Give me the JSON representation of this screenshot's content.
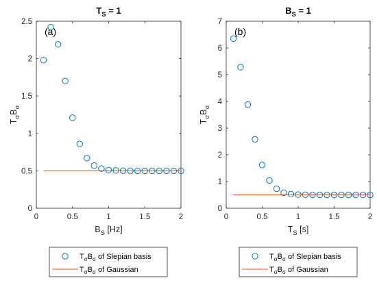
{
  "chart_data": [
    {
      "type": "scatter",
      "title": "T_S = 1",
      "title_main": "T",
      "title_sub": "S",
      "title_rest": " = 1",
      "panel_label": "(a)",
      "xlabel_main": "B",
      "xlabel_sub": "S",
      "xlabel_rest": " [Hz]",
      "ylabel_main": "T",
      "ylabel_sub1": "σ",
      "ylabel_mid": "B",
      "ylabel_sub2": "σ",
      "xlim": [
        0,
        2
      ],
      "ylim": [
        0,
        2.5
      ],
      "xticks": [
        "0",
        "0.5",
        "1",
        "1.5",
        "2"
      ],
      "yticks": [
        "0",
        "0.5",
        "1",
        "1.5",
        "2",
        "2.5"
      ],
      "grid": false,
      "series": [
        {
          "name": "T_σB_σ of Slepian basis",
          "marker": "circle",
          "color": "#0072BD",
          "x": [
            0.1,
            0.2,
            0.3,
            0.4,
            0.5,
            0.6,
            0.7,
            0.8,
            0.9,
            1.0,
            1.1,
            1.2,
            1.3,
            1.4,
            1.5,
            1.6,
            1.7,
            1.8,
            1.9,
            2.0
          ],
          "y": [
            1.98,
            2.42,
            2.19,
            1.7,
            1.21,
            0.86,
            0.67,
            0.57,
            0.53,
            0.51,
            0.505,
            0.502,
            0.501,
            0.5,
            0.5,
            0.5,
            0.5,
            0.5,
            0.5,
            0.5
          ]
        },
        {
          "name": "T_σB_σ of Gaussian",
          "marker": "line",
          "color": "#D95319",
          "x": [
            0.1,
            2.0
          ],
          "y": [
            0.5,
            0.5
          ]
        }
      ],
      "legend": [
        {
          "marker": "circle",
          "main": "T",
          "sub1": "σ",
          "mid": "B",
          "sub2": "σ",
          "rest": " of Slepian basis"
        },
        {
          "marker": "line",
          "main": "T",
          "sub1": "σ",
          "mid": "B",
          "sub2": "σ",
          "rest": " of Gaussian"
        }
      ],
      "legend_position": "bottom"
    },
    {
      "type": "scatter",
      "title": "B_S = 1",
      "title_main": "B",
      "title_sub": "S",
      "title_rest": " = 1",
      "panel_label": "(b)",
      "xlabel_main": "T",
      "xlabel_sub": "S",
      "xlabel_rest": " [s]",
      "ylabel_main": "T",
      "ylabel_sub1": "σ",
      "ylabel_mid": "B",
      "ylabel_sub2": "σ",
      "xlim": [
        0,
        2
      ],
      "ylim": [
        0,
        7
      ],
      "xticks": [
        "0",
        "0.5",
        "1",
        "1.5",
        "2"
      ],
      "yticks": [
        "0",
        "1",
        "2",
        "3",
        "4",
        "5",
        "6",
        "7"
      ],
      "grid": false,
      "series": [
        {
          "name": "T_σB_σ of Slepian basis",
          "marker": "circle",
          "color": "#0072BD",
          "x": [
            0.1,
            0.2,
            0.3,
            0.4,
            0.5,
            0.6,
            0.7,
            0.8,
            0.9,
            1.0,
            1.1,
            1.2,
            1.3,
            1.4,
            1.5,
            1.6,
            1.7,
            1.8,
            1.9,
            2.0
          ],
          "y": [
            6.35,
            5.28,
            3.88,
            2.58,
            1.62,
            1.04,
            0.73,
            0.58,
            0.53,
            0.51,
            0.505,
            0.502,
            0.501,
            0.5,
            0.5,
            0.5,
            0.5,
            0.5,
            0.5,
            0.5
          ]
        },
        {
          "name": "T_σB_σ of Gaussian",
          "marker": "line",
          "color": "#D95319",
          "x": [
            0.1,
            2.0
          ],
          "y": [
            0.5,
            0.5
          ]
        }
      ],
      "legend": [
        {
          "marker": "circle",
          "main": "T",
          "sub1": "σ",
          "mid": "B",
          "sub2": "σ",
          "rest": " of Slepian basis"
        },
        {
          "marker": "line",
          "main": "T",
          "sub1": "σ",
          "mid": "B",
          "sub2": "σ",
          "rest": " of Gaussian"
        }
      ],
      "legend_position": "bottom"
    }
  ]
}
